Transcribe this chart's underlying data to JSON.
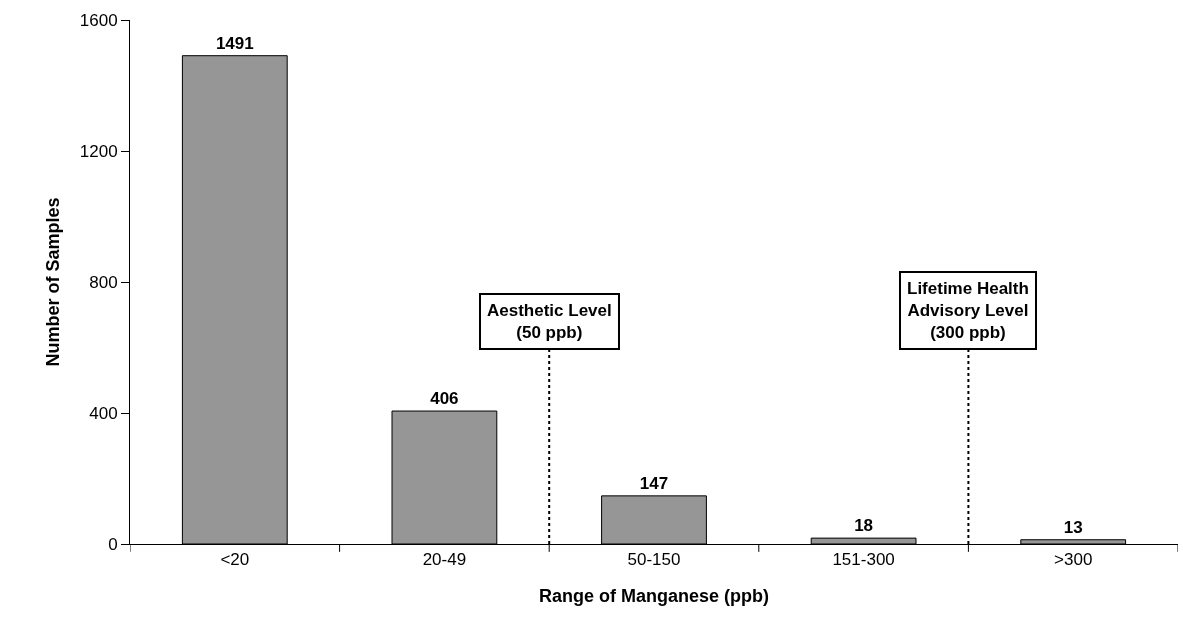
{
  "chart_data": {
    "type": "bar",
    "xlabel": "Range of Manganese (ppb)",
    "ylabel": "Number of Samples",
    "categories": [
      "<20",
      "20-49",
      "50-150",
      "151-300",
      ">300"
    ],
    "values": [
      1491,
      406,
      147,
      18,
      13
    ],
    "color": "#969696",
    "ylim": [
      0,
      1600
    ],
    "yticks": [
      0,
      400,
      800,
      1200,
      1600
    ],
    "grid": false,
    "data_labels": true,
    "annotations": [
      "Aesthetic Level\n(50 ppb)",
      "Lifetime Health\nAdvisory Level\n(300 ppb)"
    ]
  }
}
